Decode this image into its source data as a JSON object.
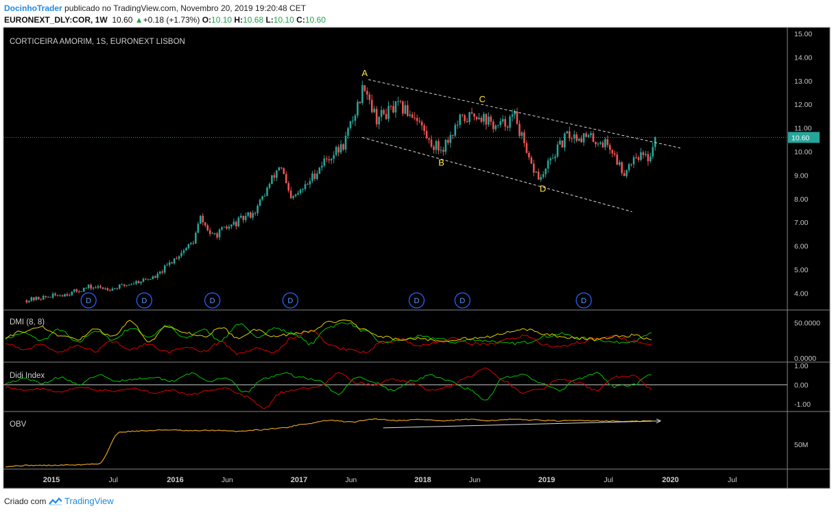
{
  "header": {
    "author": "DocinhoTrader",
    "published": "publicado no TradingView.com, Novembro 20, 2019 19:20:48 CET",
    "symbol": "EURONEXT_DLY:COR, 1W",
    "last": "10.60",
    "change": "+0.18 (+1.73%)",
    "o_label": "O:",
    "o": "10.10",
    "h_label": "H:",
    "h": "10.68",
    "l_label": "L:",
    "l": "10.10",
    "c_label": "C:",
    "c": "10.60"
  },
  "footer": {
    "prefix": "Criado com",
    "brand": "TradingView"
  },
  "colors": {
    "background": "#000000",
    "up": "#26a69a",
    "down": "#ef5350",
    "price_line": "#26a69a",
    "dmi_plus": "#00c800",
    "dmi_minus": "#e00000",
    "adx": "#e6d000",
    "obv": "#e3a020",
    "label": "#ffeb3b"
  },
  "chart_data": [
    {
      "type": "candlestick",
      "title": "CORTICEIRA AMORIM, 1S, EURONEXT LISBON",
      "ylim": [
        3.6,
        15.0
      ],
      "y_ticks": [
        "15.00",
        "14.00",
        "13.00",
        "12.00",
        "11.00",
        "10.00",
        "9.00",
        "8.00",
        "7.00",
        "6.00",
        "5.00",
        "4.00"
      ],
      "last_price_label": "10.60",
      "x_ticks": [
        "2015",
        "Jul",
        "2016",
        "Jun",
        "2017",
        "Jun",
        "2018",
        "Jun",
        "2019",
        "Jul",
        "2020",
        "Jul"
      ],
      "anchors": [
        {
          "date": "2014.8",
          "price": 3.7
        },
        {
          "date": "2015.15",
          "price": 4.0
        },
        {
          "date": "2015.3",
          "price": 4.25
        },
        {
          "date": "2015.5",
          "price": 4.2
        },
        {
          "date": "2015.7",
          "price": 4.5
        },
        {
          "date": "2015.85",
          "price": 4.7
        },
        {
          "date": "2016.0",
          "price": 5.5
        },
        {
          "date": "2016.15",
          "price": 6.2
        },
        {
          "date": "2016.2",
          "price": 7.2
        },
        {
          "date": "2016.3",
          "price": 6.4
        },
        {
          "date": "2016.5",
          "price": 7.0
        },
        {
          "date": "2016.65",
          "price": 7.5
        },
        {
          "date": "2016.85",
          "price": 9.5
        },
        {
          "date": "2016.93",
          "price": 7.9
        },
        {
          "date": "2017.05",
          "price": 8.5
        },
        {
          "date": "2017.2",
          "price": 9.6
        },
        {
          "date": "2017.35",
          "price": 10.2
        },
        {
          "date": "2017.45",
          "price": 11.6
        },
        {
          "date": "2017.53",
          "price": 12.9
        },
        {
          "date": "2017.62",
          "price": 11.4
        },
        {
          "date": "2017.8",
          "price": 11.9
        },
        {
          "date": "2017.95",
          "price": 11.5
        },
        {
          "date": "2018.05",
          "price": 10.4
        },
        {
          "date": "2018.15",
          "price": 10.1
        },
        {
          "date": "2018.3",
          "price": 11.3
        },
        {
          "date": "2018.45",
          "price": 11.6
        },
        {
          "date": "2018.6",
          "price": 11.0
        },
        {
          "date": "2018.75",
          "price": 11.5
        },
        {
          "date": "2018.85",
          "price": 9.6
        },
        {
          "date": "2018.95",
          "price": 8.8
        },
        {
          "date": "2019.05",
          "price": 9.8
        },
        {
          "date": "2019.17",
          "price": 10.7
        },
        {
          "date": "2019.33",
          "price": 10.6
        },
        {
          "date": "2019.5",
          "price": 10.3
        },
        {
          "date": "2019.62",
          "price": 9.1
        },
        {
          "date": "2019.72",
          "price": 9.9
        },
        {
          "date": "2019.82",
          "price": 9.7
        },
        {
          "date": "2019.88",
          "price": 10.6
        }
      ],
      "waves": [
        {
          "label": "A",
          "date": "2017.53",
          "price": 13.2
        },
        {
          "label": "B",
          "date": "2018.15",
          "price": 9.4
        },
        {
          "label": "C",
          "date": "2018.48",
          "price": 12.1
        },
        {
          "label": "D",
          "date": "2018.97",
          "price": 8.3
        }
      ],
      "channel": [
        {
          "from": {
            "date": "2017.56",
            "price": 13.05
          },
          "to": {
            "date": "2020.08",
            "price": 10.15
          }
        },
        {
          "from": {
            "date": "2017.51",
            "price": 10.6
          },
          "to": {
            "date": "2019.69",
            "price": 7.45
          }
        }
      ],
      "dividends": [
        {
          "label": "D",
          "date": "2015.3"
        },
        {
          "label": "D",
          "date": "2015.75"
        },
        {
          "label": "D",
          "date": "2016.3"
        },
        {
          "label": "D",
          "date": "2016.93"
        },
        {
          "label": "D",
          "date": "2017.95"
        },
        {
          "label": "D",
          "date": "2018.32"
        },
        {
          "label": "D",
          "date": "2019.3"
        }
      ]
    },
    {
      "type": "line",
      "title": "DMI (8, 8)",
      "y_ticks": [
        "50.0000",
        "0.0000"
      ],
      "ylim": [
        0,
        60
      ],
      "series": [
        {
          "key": "plus",
          "anchors": [
            28,
            35,
            25,
            40,
            22,
            38,
            26,
            42,
            30,
            45,
            28,
            40,
            25,
            48,
            30,
            42,
            35,
            20,
            44,
            50,
            38,
            22,
            25,
            30,
            28,
            22,
            26,
            24,
            20,
            22,
            30,
            34,
            28,
            26,
            22,
            24,
            34
          ]
        },
        {
          "key": "minus",
          "anchors": [
            22,
            12,
            20,
            8,
            18,
            10,
            24,
            12,
            20,
            8,
            16,
            10,
            22,
            6,
            14,
            8,
            28,
            40,
            20,
            12,
            8,
            22,
            26,
            18,
            22,
            28,
            20,
            20,
            26,
            32,
            18,
            16,
            22,
            28,
            30,
            24,
            18
          ]
        },
        {
          "key": "adx",
          "anchors": [
            30,
            38,
            44,
            32,
            26,
            40,
            30,
            52,
            24,
            44,
            36,
            30,
            42,
            28,
            40,
            30,
            34,
            38,
            50,
            54,
            40,
            30,
            26,
            28,
            24,
            26,
            28,
            30,
            36,
            40,
            34,
            30,
            28,
            26,
            30,
            32,
            26
          ]
        }
      ]
    },
    {
      "type": "line",
      "title": "Didi Index",
      "y_ticks": [
        "1.00",
        "0.00",
        "-1.00"
      ],
      "ylim": [
        -1.4,
        1.2
      ],
      "series": [
        {
          "key": "fast",
          "anchors": [
            0.1,
            0.3,
            0.1,
            0.4,
            0.0,
            0.5,
            0.2,
            0.3,
            0.4,
            0.2,
            0.6,
            0.2,
            0.3,
            -0.4,
            0.3,
            0.6,
            0.4,
            0.2,
            -0.5,
            0.4,
            0.1,
            -0.3,
            0.2,
            0.5,
            0.2,
            -0.2,
            -0.8,
            0.4,
            0.5,
            0.1,
            -0.3,
            0.3,
            0.6,
            -0.1,
            0.0,
            0.5
          ]
        },
        {
          "key": "slow",
          "anchors": [
            -0.1,
            -0.3,
            -0.2,
            -0.4,
            -0.1,
            -0.3,
            -0.3,
            -0.2,
            -0.4,
            -0.3,
            -0.5,
            -0.3,
            -0.2,
            -0.6,
            -1.2,
            -0.4,
            -0.2,
            -0.1,
            0.6,
            0.1,
            0.0,
            0.3,
            0.1,
            -0.3,
            -0.1,
            0.4,
            0.9,
            0.2,
            -0.4,
            -0.2,
            0.3,
            0.1,
            -0.3,
            0.4,
            0.5,
            -0.2
          ]
        }
      ]
    },
    {
      "type": "line",
      "title": "OBV",
      "y_ticks": [
        "50M"
      ],
      "series": [
        {
          "key": "obv",
          "anchors": [
            0,
            0.02,
            0.02,
            0.03,
            0.05,
            0.7,
            0.72,
            0.74,
            0.72,
            0.73,
            0.71,
            0.74,
            0.78,
            0.86,
            0.93,
            0.9,
            0.96,
            0.93,
            0.95,
            0.92,
            0.95,
            0.93,
            0.95,
            0.94,
            0.92,
            0.93,
            0.92,
            0.91,
            0.92
          ]
        }
      ],
      "trendline": {
        "from": {
          "date": "2017.68",
          "value": 0.78
        },
        "to": {
          "date": "2019.92",
          "value": 0.92
        }
      }
    }
  ]
}
